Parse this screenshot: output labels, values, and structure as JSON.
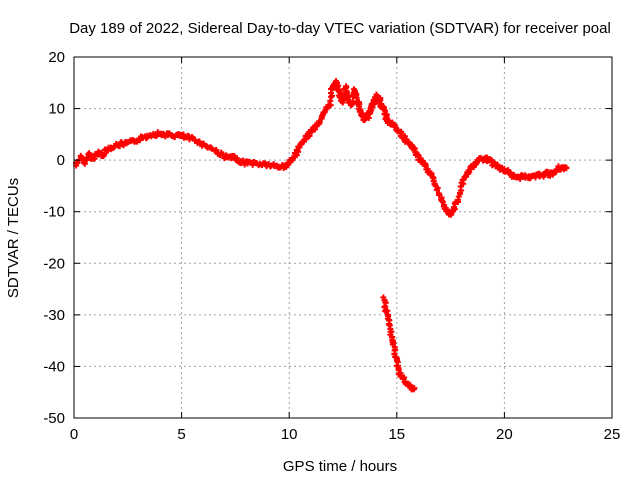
{
  "chart_data": {
    "type": "scatter",
    "title": "Day 189 of 2022, Sidereal Day-to-day VTEC variation (SDTVAR) for receiver poal",
    "xlabel": "GPS time / hours",
    "ylabel": "SDTVAR / TECUs",
    "xlim": [
      0,
      25
    ],
    "ylim": [
      -50,
      20
    ],
    "xticks": [
      0,
      5,
      10,
      15,
      20,
      25
    ],
    "yticks": [
      -50,
      -40,
      -30,
      -20,
      -10,
      0,
      10,
      20
    ],
    "grid": true,
    "legend": "none",
    "colors": {
      "series": "#ff0000",
      "grid": "#a0a0a0",
      "axis": "#000000"
    },
    "series": [
      {
        "name": "SDTVAR main",
        "points": [
          [
            0.1,
            -1.0
          ],
          [
            0.3,
            0.5
          ],
          [
            0.5,
            -0.5
          ],
          [
            0.7,
            1.2
          ],
          [
            0.9,
            0.2
          ],
          [
            1.1,
            1.5
          ],
          [
            1.3,
            1.0
          ],
          [
            1.5,
            2.0
          ],
          [
            1.8,
            2.6
          ],
          [
            2.1,
            3.0
          ],
          [
            2.4,
            3.2
          ],
          [
            2.7,
            3.5
          ],
          [
            3.0,
            4.0
          ],
          [
            3.3,
            4.5
          ],
          [
            3.6,
            5.0
          ],
          [
            3.9,
            5.1
          ],
          [
            4.2,
            5.0
          ],
          [
            4.5,
            4.8
          ],
          [
            4.8,
            4.8
          ],
          [
            5.1,
            4.6
          ],
          [
            5.4,
            4.2
          ],
          [
            5.7,
            3.8
          ],
          [
            6.0,
            3.0
          ],
          [
            6.3,
            2.5
          ],
          [
            6.6,
            1.8
          ],
          [
            6.9,
            1.0
          ],
          [
            7.1,
            0.5
          ],
          [
            7.4,
            0.5
          ],
          [
            7.6,
            0.0
          ],
          [
            7.9,
            -0.5
          ],
          [
            8.2,
            -0.5
          ],
          [
            8.5,
            -0.7
          ],
          [
            8.8,
            -0.8
          ],
          [
            9.1,
            -1.0
          ],
          [
            9.4,
            -1.2
          ],
          [
            9.7,
            -1.3
          ],
          [
            9.9,
            -1.0
          ],
          [
            10.1,
            0.0
          ],
          [
            10.3,
            1.0
          ],
          [
            10.5,
            2.5
          ],
          [
            10.7,
            4.0
          ],
          [
            10.9,
            5.0
          ],
          [
            11.1,
            6.0
          ],
          [
            11.3,
            7.0
          ],
          [
            11.5,
            8.0
          ],
          [
            11.7,
            9.5
          ],
          [
            11.9,
            11.0
          ],
          [
            12.0,
            14.0
          ],
          [
            12.1,
            15.0
          ],
          [
            12.2,
            14.8
          ],
          [
            12.3,
            13.5
          ],
          [
            12.4,
            12.0
          ],
          [
            12.5,
            11.0
          ],
          [
            12.6,
            14.0
          ],
          [
            12.7,
            13.0
          ],
          [
            12.8,
            11.5
          ],
          [
            12.9,
            10.5
          ],
          [
            13.0,
            13.5
          ],
          [
            13.1,
            12.5
          ],
          [
            13.2,
            11.0
          ],
          [
            13.3,
            9.5
          ],
          [
            13.4,
            8.5
          ],
          [
            13.5,
            8.0
          ],
          [
            13.6,
            9.0
          ],
          [
            13.7,
            8.5
          ],
          [
            13.8,
            10.0
          ],
          [
            13.9,
            11.0
          ],
          [
            14.0,
            12.0
          ],
          [
            14.1,
            12.5
          ],
          [
            14.2,
            11.5
          ],
          [
            14.3,
            10.5
          ],
          [
            14.4,
            9.5
          ],
          [
            14.5,
            8.5
          ],
          [
            14.6,
            7.5
          ],
          [
            14.8,
            7.0
          ],
          [
            15.0,
            6.0
          ],
          [
            15.2,
            5.0
          ],
          [
            15.4,
            4.0
          ],
          [
            15.6,
            3.0
          ],
          [
            15.8,
            2.0
          ],
          [
            16.0,
            0.5
          ],
          [
            16.2,
            -0.5
          ],
          [
            16.4,
            -1.5
          ],
          [
            16.6,
            -3.0
          ],
          [
            16.8,
            -5.0
          ],
          [
            17.0,
            -7.0
          ],
          [
            17.2,
            -9.0
          ],
          [
            17.4,
            -10.5
          ],
          [
            17.6,
            -10.0
          ],
          [
            17.8,
            -8.0
          ],
          [
            18.0,
            -5.0
          ],
          [
            18.2,
            -3.0
          ],
          [
            18.4,
            -2.0
          ],
          [
            18.6,
            -1.0
          ],
          [
            18.8,
            0.0
          ],
          [
            19.0,
            0.3
          ],
          [
            19.2,
            0.2
          ],
          [
            19.4,
            -0.5
          ],
          [
            19.6,
            -1.0
          ],
          [
            19.8,
            -1.5
          ],
          [
            20.0,
            -2.0
          ],
          [
            20.2,
            -2.5
          ],
          [
            20.4,
            -3.0
          ],
          [
            20.6,
            -3.5
          ],
          [
            20.8,
            -3.0
          ],
          [
            21.0,
            -3.2
          ],
          [
            21.2,
            -3.5
          ],
          [
            21.4,
            -3.0
          ],
          [
            21.6,
            -2.8
          ],
          [
            21.8,
            -3.0
          ],
          [
            22.0,
            -2.5
          ],
          [
            22.2,
            -2.8
          ],
          [
            22.5,
            -1.5
          ],
          [
            22.7,
            -1.8
          ],
          [
            22.9,
            -1.5
          ]
        ]
      },
      {
        "name": "SDTVAR drop",
        "points": [
          [
            14.4,
            -27.0
          ],
          [
            14.5,
            -29.0
          ],
          [
            14.6,
            -31.0
          ],
          [
            14.7,
            -33.0
          ],
          [
            14.8,
            -35.0
          ],
          [
            14.9,
            -37.0
          ],
          [
            15.0,
            -39.0
          ],
          [
            15.1,
            -41.0
          ],
          [
            15.2,
            -42.0
          ],
          [
            15.4,
            -43.0
          ],
          [
            15.6,
            -44.0
          ],
          [
            15.8,
            -44.5
          ]
        ]
      }
    ]
  }
}
